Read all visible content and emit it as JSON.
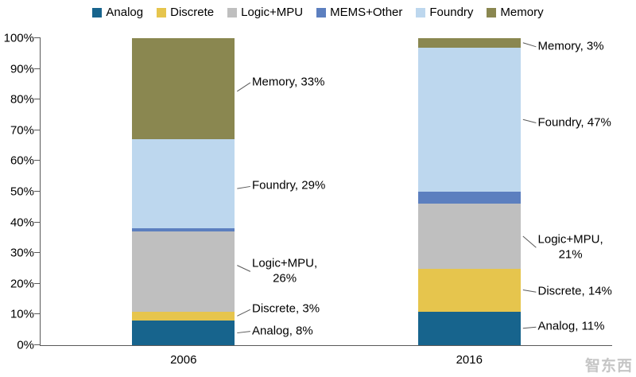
{
  "watermark": "智东西",
  "chart_data": {
    "type": "bar",
    "subtype": "stacked-100",
    "title": "",
    "xlabel": "",
    "ylabel": "",
    "categories": [
      "2006",
      "2016"
    ],
    "series": [
      {
        "name": "Analog",
        "color": "#17648D",
        "values": [
          8,
          11
        ]
      },
      {
        "name": "Discrete",
        "color": "#E6C54D",
        "values": [
          3,
          14
        ]
      },
      {
        "name": "Logic+MPU",
        "color": "#BFBFBF",
        "values": [
          26,
          21
        ]
      },
      {
        "name": "MEMS+Other",
        "color": "#5C7FBF",
        "values": [
          1,
          4
        ]
      },
      {
        "name": "Foundry",
        "color": "#BDD7EE",
        "values": [
          29,
          47
        ]
      },
      {
        "name": "Memory",
        "color": "#8A8750",
        "values": [
          33,
          3
        ]
      }
    ],
    "ylim": [
      0,
      100
    ],
    "ytick_step": 10,
    "ytick_suffix": "%",
    "legend_position": "top",
    "grid": false,
    "annotations": [
      {
        "bar": 0,
        "text": "Memory, 33%",
        "text_y": 85.5,
        "tip_y": 82.7
      },
      {
        "bar": 0,
        "text": "Foundry, 29%",
        "text_y": 51.7,
        "tip_y": 51.0
      },
      {
        "bar": 0,
        "text": "Logic+MPU,\n26%",
        "text_y": 24.0,
        "tip_y": 26.0
      },
      {
        "bar": 0,
        "text": "Discrete, 3%",
        "text_y": 11.6,
        "tip_y": 9.5
      },
      {
        "bar": 0,
        "text": "Analog, 8%",
        "text_y": 4.5,
        "tip_y": 4.0
      },
      {
        "bar": 1,
        "text": "Memory, 3%",
        "text_y": 97.2,
        "tip_y": 98.5
      },
      {
        "bar": 1,
        "text": "Foundry, 47%",
        "text_y": 72.4,
        "tip_y": 73.5
      },
      {
        "bar": 1,
        "text": "Logic+MPU,\n21%",
        "text_y": 31.8,
        "tip_y": 35.5
      },
      {
        "bar": 1,
        "text": "Discrete, 14%",
        "text_y": 17.3,
        "tip_y": 18.0
      },
      {
        "bar": 1,
        "text": "Analog, 11%",
        "text_y": 5.9,
        "tip_y": 5.5
      }
    ]
  }
}
